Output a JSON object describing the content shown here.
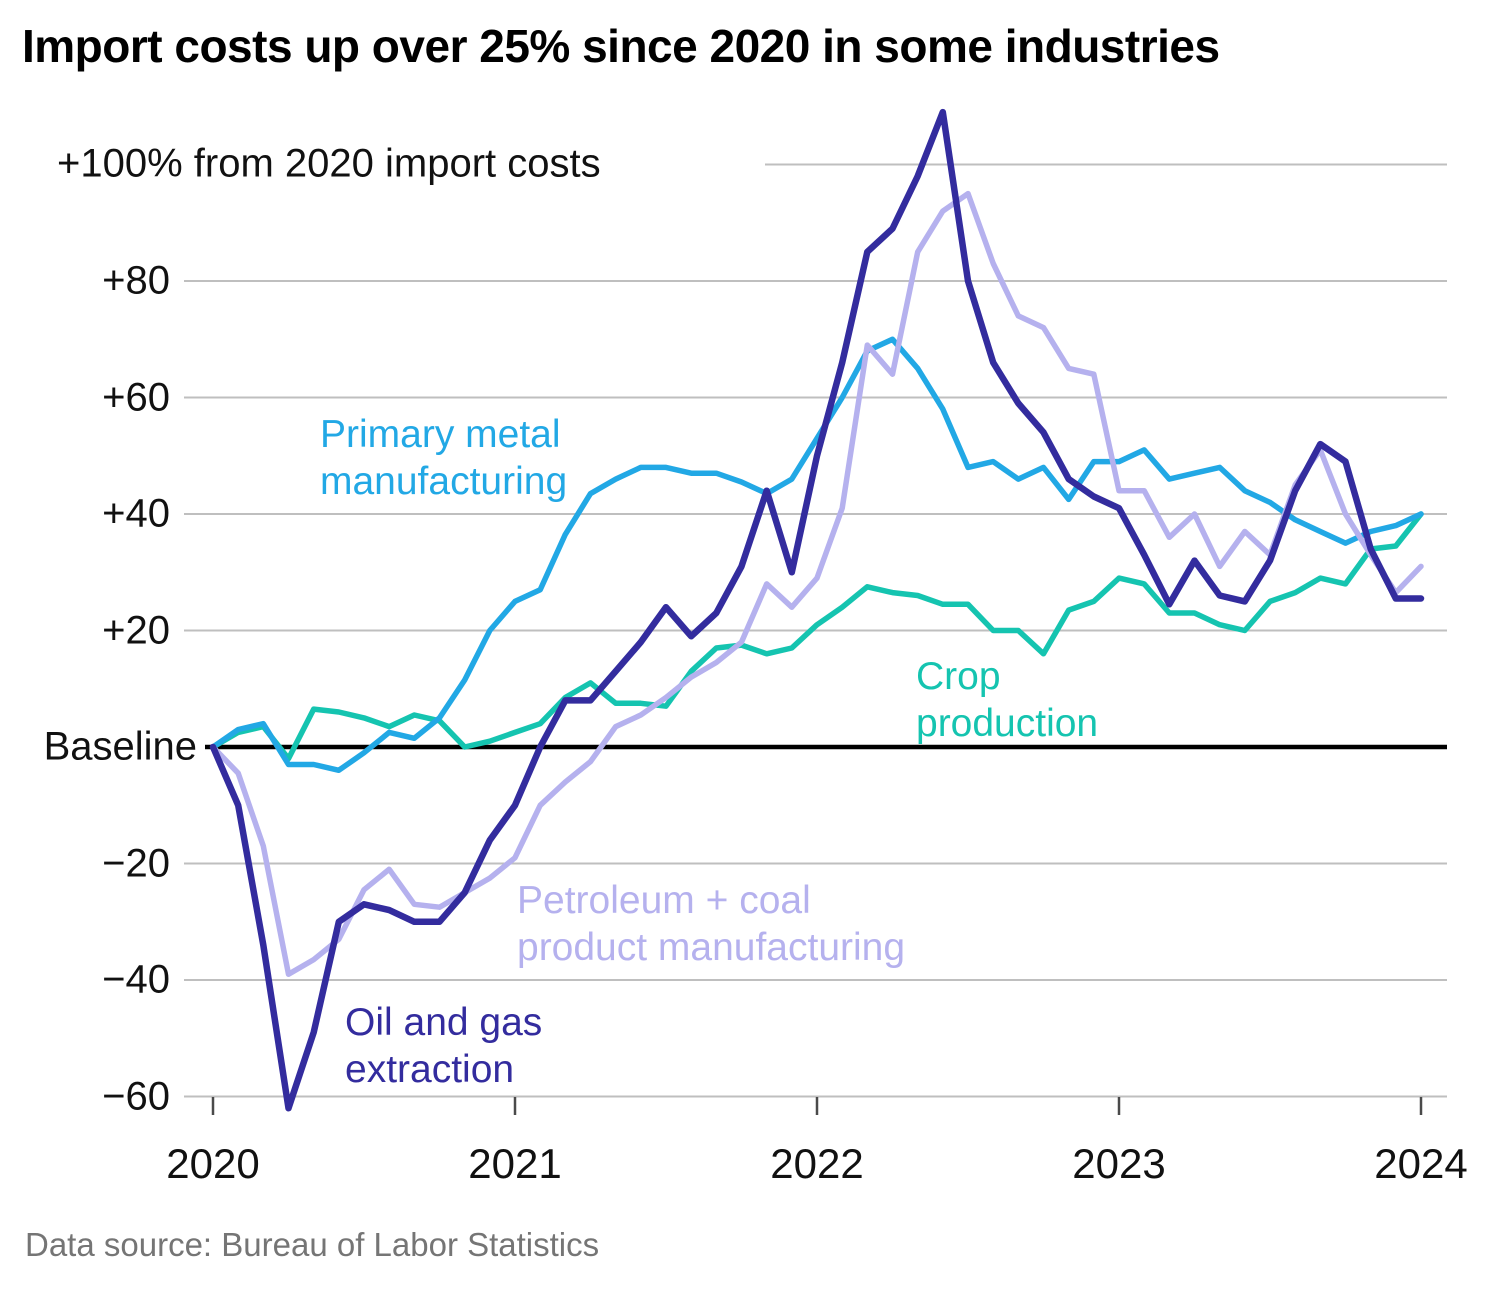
{
  "title": "Import costs up over 25% since 2020 in some industries",
  "source": "Data source: Bureau of Labor Statistics",
  "chart_data": {
    "type": "line",
    "frequency": "monthly",
    "x_start": "2020-01",
    "x_end": "2024-01",
    "x_tick_labels": [
      "2020",
      "2021",
      "2022",
      "2023",
      "2024"
    ],
    "y_axis": {
      "top_label": "+100% from 2020 import costs",
      "tick_labels": [
        "+80",
        "+60",
        "+40",
        "+20",
        "Baseline",
        "−20",
        "−40",
        "−60"
      ],
      "tick_values": [
        80,
        60,
        40,
        20,
        0,
        -20,
        -40,
        -60
      ],
      "grid_values": [
        100,
        80,
        60,
        40,
        20,
        -20,
        -40,
        -60
      ],
      "baseline_value": 0,
      "ylim": [
        -66,
        113
      ],
      "gridline_color": "#bfbfbf",
      "baseline_color": "#000000",
      "tick_mark_color": "#4a4a4a"
    },
    "legend_position": "inline-labels",
    "grid": true,
    "series": [
      {
        "name": "Crop production",
        "label_lines": [
          "Crop",
          "production"
        ],
        "color": "#15c4b0",
        "values": [
          0,
          2.5,
          3.5,
          -2,
          6.5,
          6,
          5,
          3.5,
          5.5,
          4.5,
          0,
          1,
          2.5,
          4,
          8.5,
          11,
          7.5,
          7.5,
          7,
          13,
          17,
          17.5,
          16,
          17,
          21,
          24,
          27.5,
          26.5,
          26,
          24.5,
          24.5,
          20,
          20,
          16,
          23.5,
          25,
          29,
          28,
          23,
          23,
          21,
          20,
          25,
          26.5,
          29,
          28,
          34,
          34.5,
          40
        ]
      },
      {
        "name": "Primary metal manufacturing",
        "label_lines": [
          "Primary metal",
          "manufacturing"
        ],
        "color": "#22a8e5",
        "values": [
          0,
          3,
          4,
          -3,
          -3,
          -4,
          -1,
          2.5,
          1.5,
          5,
          11.5,
          20,
          25,
          27,
          36.5,
          43.5,
          46,
          48,
          48,
          47,
          47,
          45.5,
          43.5,
          46,
          53,
          60,
          68,
          70,
          65,
          58,
          48,
          49,
          46,
          48,
          42.5,
          49,
          49,
          51,
          46,
          47,
          48,
          44,
          42,
          39,
          37,
          35,
          37,
          38,
          40
        ]
      },
      {
        "name": "Petroleum + coal product manufacturing",
        "label_lines": [
          "Petroleum + coal",
          "product manufacturing"
        ],
        "color": "#b5b1ee",
        "values": [
          0,
          -4.5,
          -17,
          -39,
          -36.5,
          -33,
          -24.5,
          -21,
          -27,
          -27.5,
          -25,
          -22.5,
          -19,
          -10,
          -6,
          -2.5,
          3.5,
          5.5,
          8.5,
          12,
          14.5,
          18,
          28,
          24,
          29,
          41,
          69,
          64,
          85,
          92,
          95,
          83,
          74,
          72,
          65,
          64,
          44,
          44,
          36,
          40,
          31,
          37,
          33,
          45,
          51,
          40,
          33,
          26.5,
          31
        ]
      },
      {
        "name": "Oil and gas extraction",
        "label_lines": [
          "Oil and gas",
          "extraction"
        ],
        "color": "#332c9e",
        "values": [
          0,
          -10,
          -34,
          -62,
          -49,
          -30,
          -27,
          -28,
          -30,
          -30,
          -25,
          -16,
          -10,
          0,
          8,
          8,
          13,
          18,
          24,
          19,
          23,
          31,
          44,
          30,
          50,
          66,
          85,
          89,
          98,
          109,
          80,
          66,
          59,
          54,
          46,
          43,
          41,
          33,
          24.5,
          32,
          26,
          25,
          32,
          44,
          52,
          49,
          34,
          25.5,
          25.5
        ]
      }
    ]
  }
}
